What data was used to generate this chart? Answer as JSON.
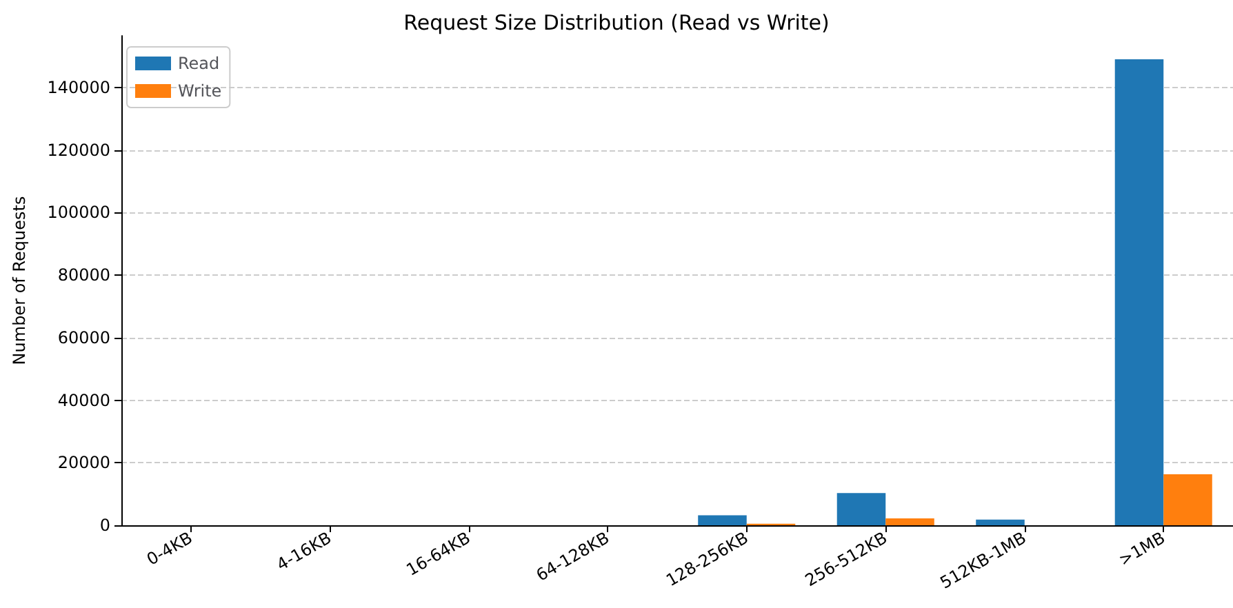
{
  "chart_data": {
    "type": "bar",
    "title": "Request Size Distribution (Read vs Write)",
    "ylabel": "Number of Requests",
    "categories": [
      "0-4KB",
      "4-16KB",
      "16-64KB",
      "64-128KB",
      "128-256KB",
      "256-512KB",
      "512KB-1MB",
      ">1MB"
    ],
    "series": [
      {
        "name": "Read",
        "color": "#1f77b4",
        "values": [
          0,
          0,
          0,
          0,
          3200,
          10300,
          1800,
          149000
        ]
      },
      {
        "name": "Write",
        "color": "#ff7f0e",
        "values": [
          0,
          0,
          0,
          0,
          500,
          2200,
          0,
          16300
        ]
      }
    ],
    "ylim": [
      0,
      156500
    ],
    "yticks": [
      0,
      20000,
      40000,
      60000,
      80000,
      100000,
      120000,
      140000
    ],
    "grid": "y",
    "legend": "top left"
  }
}
